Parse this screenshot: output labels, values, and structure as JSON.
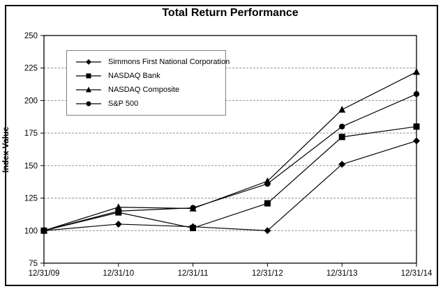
{
  "chart_data": {
    "type": "line",
    "title": "Total Return Performance",
    "ylabel": "Index Value",
    "xlabel": "",
    "categories": [
      "12/31/09",
      "12/31/10",
      "12/31/11",
      "12/31/12",
      "12/31/13",
      "12/31/14"
    ],
    "series": [
      {
        "name": "Simmons First National Corporation",
        "marker": "diamond",
        "color": "#000000",
        "values": [
          100,
          105,
          103,
          100,
          151,
          169
        ]
      },
      {
        "name": "NASDAQ Bank",
        "marker": "square",
        "color": "#000000",
        "values": [
          100,
          114,
          102,
          121,
          172,
          180
        ]
      },
      {
        "name": "NASDAQ Composite",
        "marker": "triangle",
        "color": "#000000",
        "values": [
          100,
          118,
          117,
          138,
          193,
          222
        ]
      },
      {
        "name": "S&P 500",
        "marker": "circle",
        "color": "#000000",
        "values": [
          100,
          115,
          117.5,
          136,
          180,
          205
        ]
      }
    ],
    "ylim": [
      75,
      250
    ],
    "yticks": [
      75,
      100,
      125,
      150,
      175,
      200,
      225,
      250
    ],
    "grid": true,
    "grid_color": "#909090",
    "axis_color": "#000000",
    "background": "#ffffff",
    "legend_position": "upper-left-inside"
  }
}
